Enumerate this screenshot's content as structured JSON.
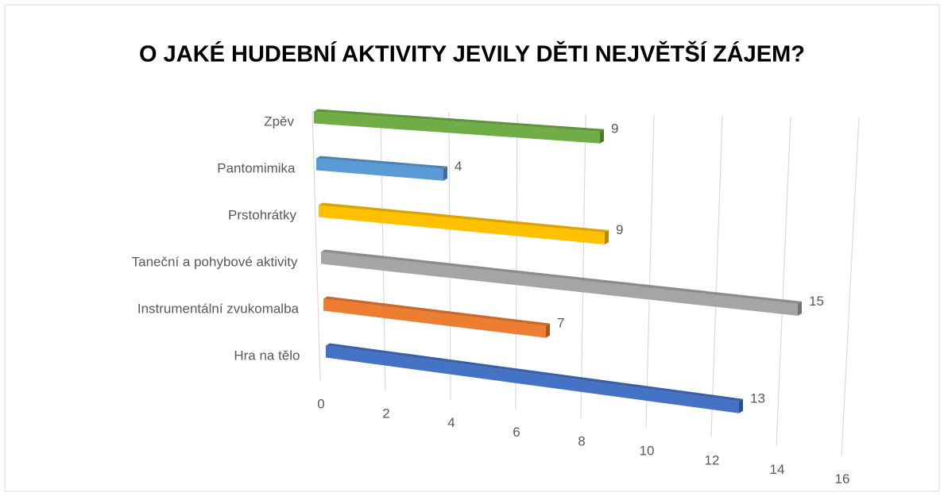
{
  "chart_data": {
    "type": "bar",
    "orientation": "horizontal",
    "three_d": true,
    "title": "O JAKÉ HUDEBNÍ AKTIVITY JEVILY DĚTI NEJVĚTŠÍ ZÁJEM?",
    "categories": [
      "Zpěv",
      "Pantomimika",
      "Prstohrátky",
      "Taneční a pohybové aktivity",
      "Instrumentální zvukomalba",
      "Hra na tělo"
    ],
    "values": [
      9,
      4,
      9,
      15,
      7,
      13
    ],
    "colors": [
      "#70ad47",
      "#5b9bd5",
      "#ffc000",
      "#a5a5a5",
      "#ed7d31",
      "#4472c4"
    ],
    "xlim": [
      0,
      16
    ],
    "xticks": [
      0,
      2,
      4,
      6,
      8,
      10,
      12,
      14,
      16
    ],
    "grid": true
  }
}
